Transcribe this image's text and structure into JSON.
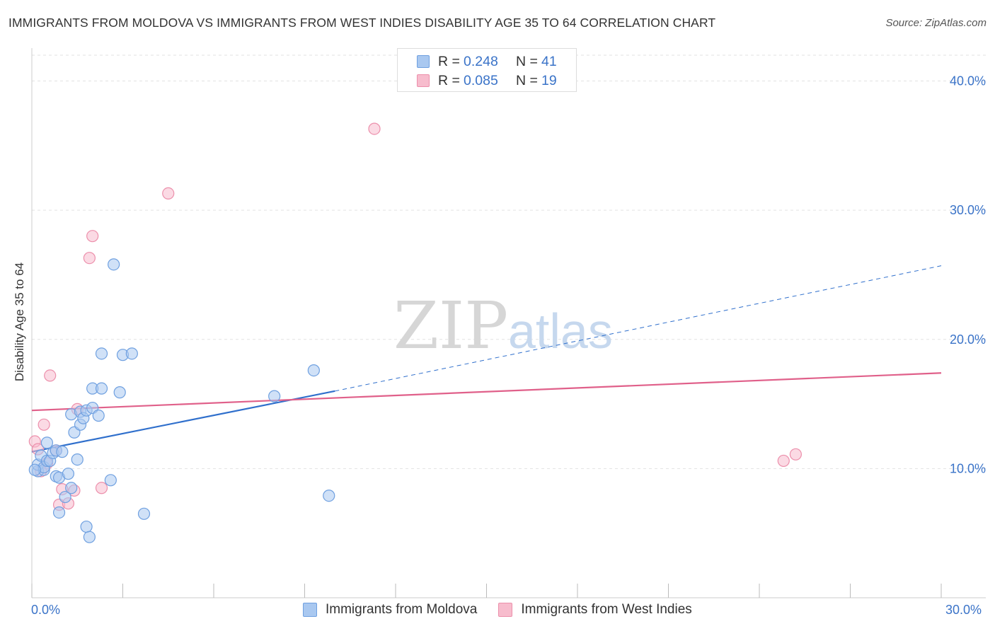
{
  "header": {
    "title": "IMMIGRANTS FROM MOLDOVA VS IMMIGRANTS FROM WEST INDIES DISABILITY AGE 35 TO 64 CORRELATION CHART",
    "source": "Source: ZipAtlas.com"
  },
  "legend": {
    "rows": [
      {
        "r_label": "R =",
        "r_value": "0.248",
        "n_label": "N =",
        "n_value": "41"
      },
      {
        "r_label": "R =",
        "r_value": "0.085",
        "n_label": "N =",
        "n_value": "19"
      }
    ]
  },
  "watermark": {
    "zip": "ZIP",
    "atlas": "atlas"
  },
  "colors": {
    "moldova_fill": "#a9c8f0",
    "moldova_stroke": "#6fa0e0",
    "moldova_line": "#2f6fcc",
    "westindies_fill": "#f7bccd",
    "westindies_stroke": "#ec8fab",
    "westindies_line": "#e0608a",
    "axis_label": "#3a73c8",
    "grid": "#e2e2e2"
  },
  "chart_data": {
    "type": "scatter",
    "title": "IMMIGRANTS FROM MOLDOVA VS IMMIGRANTS FROM WEST INDIES DISABILITY AGE 35 TO 64 CORRELATION CHART",
    "xlabel": "",
    "ylabel": "Disability Age 35 to 64",
    "xlim": [
      0,
      30
    ],
    "ylim": [
      0,
      42
    ],
    "x_tick_labels": [
      "0.0%",
      "30.0%"
    ],
    "y_ticks": [
      10,
      20,
      30,
      40
    ],
    "y_tick_labels": [
      "10.0%",
      "20.0%",
      "30.0%",
      "40.0%"
    ],
    "grid": true,
    "legend_position": "top-center",
    "series": [
      {
        "name": "Immigrants from Moldova",
        "color": "#a9c8f0",
        "points": [
          [
            0.2,
            9.8
          ],
          [
            0.2,
            10.3
          ],
          [
            0.3,
            11.0
          ],
          [
            0.4,
            9.9
          ],
          [
            0.4,
            10.1
          ],
          [
            0.5,
            10.6
          ],
          [
            0.5,
            12.0
          ],
          [
            0.6,
            10.6
          ],
          [
            0.7,
            11.2
          ],
          [
            0.8,
            9.4
          ],
          [
            0.8,
            11.4
          ],
          [
            0.9,
            6.6
          ],
          [
            0.9,
            9.3
          ],
          [
            1.0,
            11.3
          ],
          [
            1.1,
            7.8
          ],
          [
            1.2,
            9.6
          ],
          [
            1.3,
            14.2
          ],
          [
            1.3,
            8.5
          ],
          [
            1.4,
            12.8
          ],
          [
            1.5,
            10.7
          ],
          [
            1.6,
            13.4
          ],
          [
            1.6,
            14.4
          ],
          [
            1.7,
            13.9
          ],
          [
            1.8,
            14.5
          ],
          [
            1.8,
            5.5
          ],
          [
            1.9,
            4.7
          ],
          [
            2.0,
            14.7
          ],
          [
            2.0,
            16.2
          ],
          [
            2.2,
            14.1
          ],
          [
            2.3,
            18.9
          ],
          [
            2.3,
            16.2
          ],
          [
            2.6,
            9.1
          ],
          [
            2.7,
            25.8
          ],
          [
            2.9,
            15.9
          ],
          [
            3.0,
            18.8
          ],
          [
            3.3,
            18.9
          ],
          [
            3.7,
            6.5
          ],
          [
            8.0,
            15.6
          ],
          [
            9.3,
            17.6
          ],
          [
            9.8,
            7.9
          ],
          [
            0.1,
            9.9
          ]
        ],
        "trend": {
          "x0": 0.0,
          "y0": 11.3,
          "x1": 10.0,
          "y1": 16.0,
          "dashed_to_x": 30.0,
          "dashed_to_y": 25.7
        }
      },
      {
        "name": "Immigrants from West Indies",
        "color": "#f7bccd",
        "points": [
          [
            0.1,
            12.1
          ],
          [
            0.2,
            11.5
          ],
          [
            0.4,
            13.4
          ],
          [
            0.5,
            10.4
          ],
          [
            0.6,
            17.2
          ],
          [
            0.8,
            11.4
          ],
          [
            0.9,
            7.2
          ],
          [
            1.0,
            8.4
          ],
          [
            1.2,
            7.3
          ],
          [
            1.4,
            8.3
          ],
          [
            1.5,
            14.6
          ],
          [
            1.9,
            26.3
          ],
          [
            2.0,
            28.0
          ],
          [
            2.3,
            8.5
          ],
          [
            4.5,
            31.3
          ],
          [
            11.3,
            36.3
          ],
          [
            24.8,
            10.6
          ],
          [
            25.2,
            11.1
          ],
          [
            0.3,
            9.8
          ]
        ],
        "trend": {
          "x0": 0.0,
          "y0": 14.5,
          "x1": 30.0,
          "y1": 17.4
        }
      }
    ]
  },
  "bottom_legend": [
    {
      "label": "Immigrants from Moldova"
    },
    {
      "label": "Immigrants from West Indies"
    }
  ]
}
